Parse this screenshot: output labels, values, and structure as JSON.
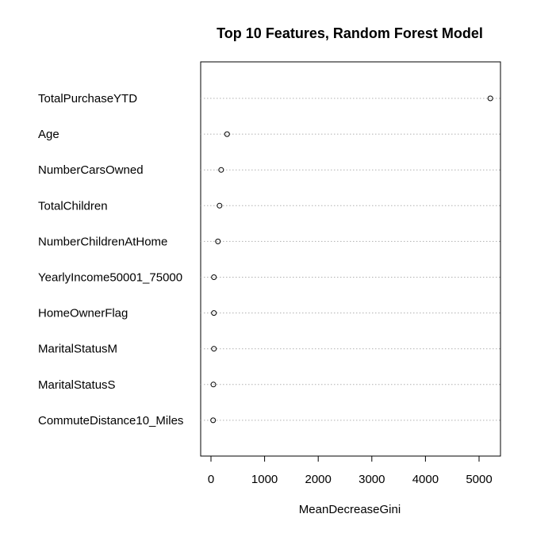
{
  "chart_data": {
    "type": "scatter",
    "title": "Top 10 Features, Random Forest Model",
    "xlabel": "MeanDecreaseGini",
    "ylabel": "",
    "xlim": [
      -200,
      5400
    ],
    "xticks": [
      0,
      1000,
      2000,
      3000,
      4000,
      5000
    ],
    "grid": "horizontal dotted",
    "categories": [
      "TotalPurchaseYTD",
      "Age",
      "NumberCarsOwned",
      "TotalChildren",
      "NumberChildrenAtHome",
      "YearlyIncome50001_75000",
      "HomeOwnerFlag",
      "MaritalStatusM",
      "MaritalStatusS",
      "CommuteDistance10_Miles"
    ],
    "values": [
      5210,
      300,
      190,
      160,
      130,
      55,
      55,
      55,
      45,
      40
    ]
  }
}
